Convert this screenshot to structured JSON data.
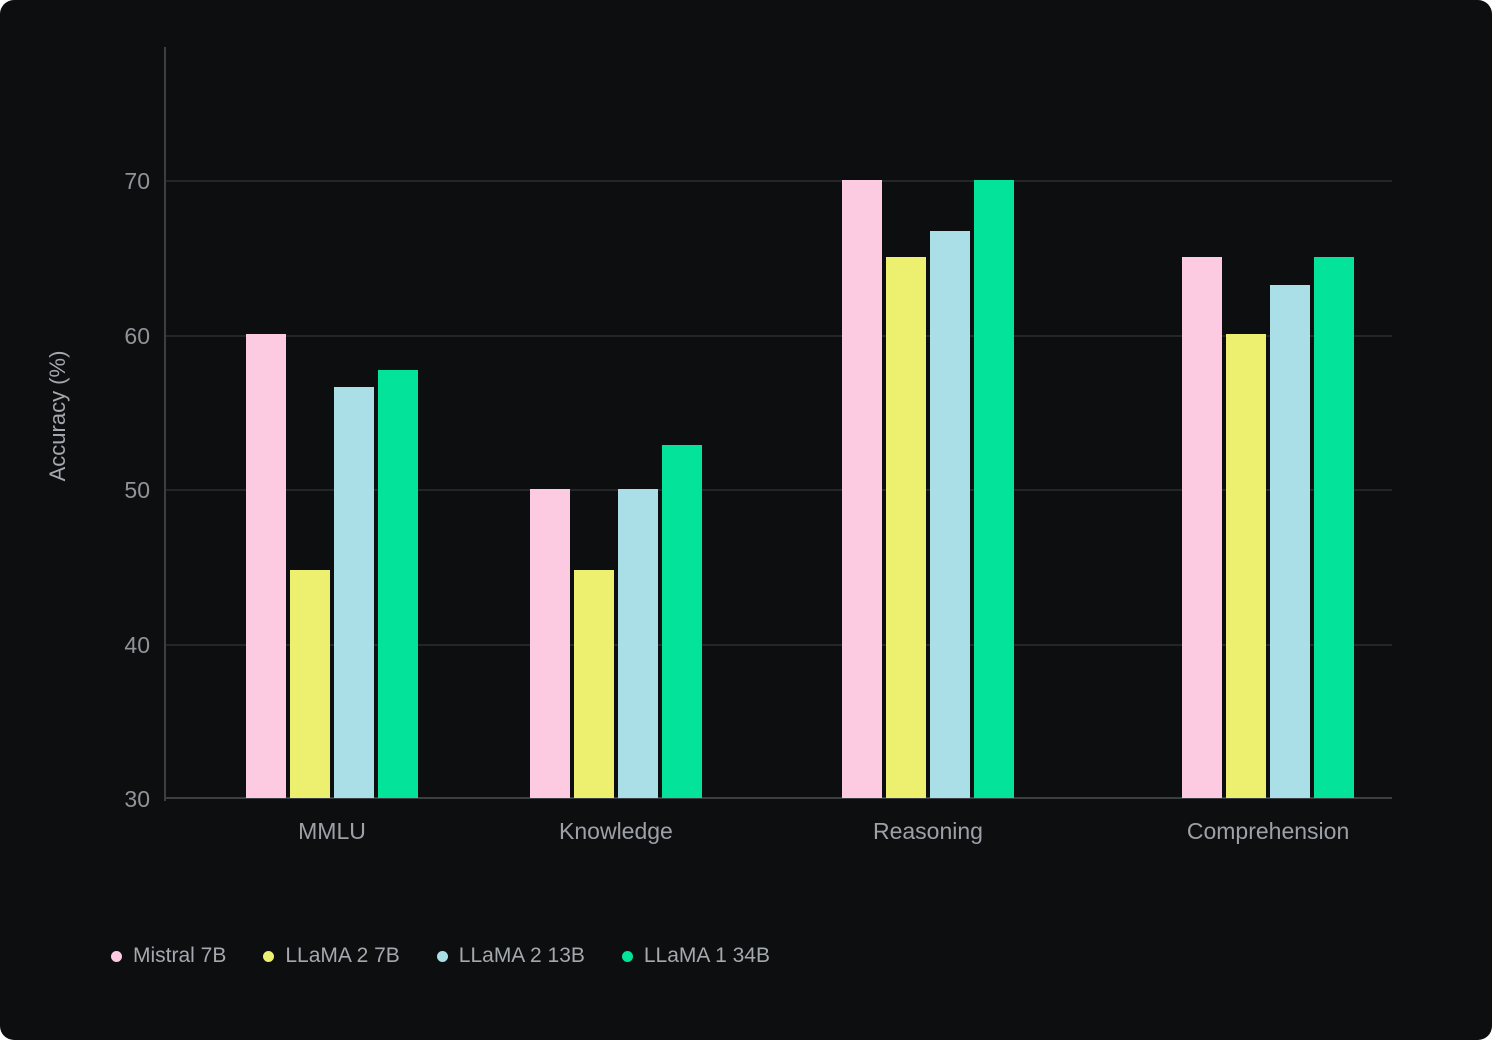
{
  "theme": {
    "background": "#0D0E0F",
    "grid_color": "#232527",
    "axis_color": "#3B3E42",
    "tick_text_color": "#90949A",
    "category_text_color": "#9CA1A7",
    "axis_title_color": "#A4A8AF",
    "legend_text_color": "#A4A8AF"
  },
  "chart_data": {
    "type": "bar",
    "title": "",
    "xlabel": "",
    "ylabel": "Accuracy (%)",
    "categories": [
      "MMLU",
      "Knowledge",
      "Reasoning",
      "Comprehension"
    ],
    "series": [
      {
        "name": "Mistral 7B",
        "color": "#FCCBE2",
        "values": [
          60.1,
          50.1,
          70.1,
          65.1
        ]
      },
      {
        "name": "LLaMA 2 7B",
        "color": "#EDF06F",
        "values": [
          44.8,
          44.8,
          65.1,
          60.1
        ]
      },
      {
        "name": "LLaMA 2 13B",
        "color": "#AADFE8",
        "values": [
          56.7,
          50.1,
          66.8,
          63.3
        ]
      },
      {
        "name": "LLaMA 1 34B",
        "color": "#03E39A",
        "values": [
          57.8,
          52.9,
          70.1,
          65.1
        ]
      }
    ],
    "yticks": [
      30,
      40,
      50,
      60,
      70
    ],
    "ylim": [
      30,
      78.7
    ],
    "grid": true,
    "legend_position": "bottom-left"
  }
}
